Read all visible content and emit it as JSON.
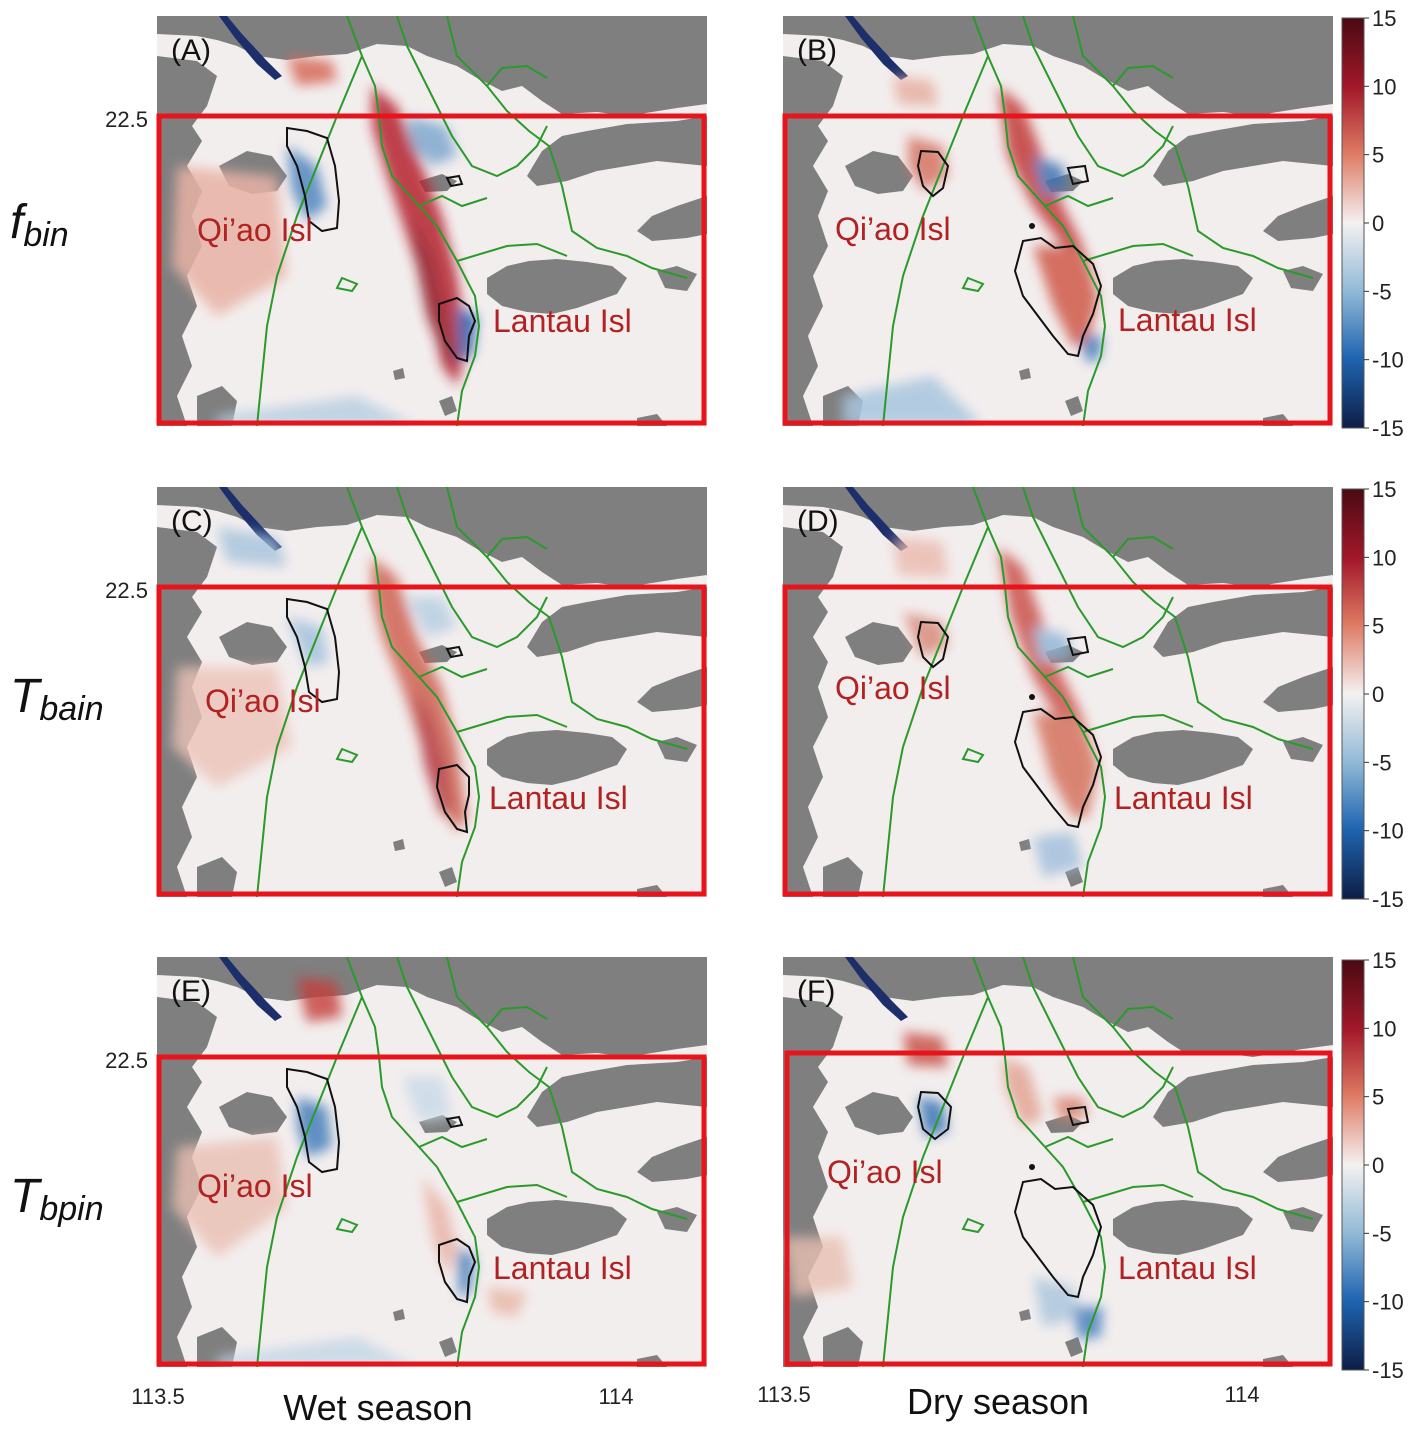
{
  "colors": {
    "land": "#7f7f7f",
    "water": "#f3eeee",
    "box": "#e8141b",
    "channel": "#2a9a2a",
    "contour": "#111111",
    "island_label": "#b22222"
  },
  "axes": {
    "lat_tick": "22.5",
    "lon_ticks": [
      "113.5",
      "114"
    ]
  },
  "rows": [
    {
      "label_base": "f",
      "label_sub": "bin"
    },
    {
      "label_base": "T",
      "label_sub": "bain"
    },
    {
      "label_base": "T",
      "label_sub": "bpin"
    }
  ],
  "columns": [
    {
      "season": "Wet season"
    },
    {
      "season": "Dry season"
    }
  ],
  "panels": [
    {
      "letter": "(A)",
      "island1": "Qi’ao Isl",
      "island2": "Lantau Isl"
    },
    {
      "letter": "(B)",
      "island1": "Qi’ao Isl",
      "island2": "Lantau Isl"
    },
    {
      "letter": "(C)",
      "island1": "Qi’ao Isl",
      "island2": "Lantau Isl"
    },
    {
      "letter": "(D)",
      "island1": "Qi’ao Isl",
      "island2": "Lantau Isl"
    },
    {
      "letter": "(E)",
      "island1": "Qi’ao Isl",
      "island2": "Lantau Isl"
    },
    {
      "letter": "(F)",
      "island1": "Qi’ao Isl",
      "island2": "Lantau Isl"
    }
  ],
  "colorbar": {
    "ticks": [
      "15",
      "10",
      "5",
      "0",
      "-5",
      "-10",
      "-15"
    ],
    "min": -15,
    "max": 15
  }
}
